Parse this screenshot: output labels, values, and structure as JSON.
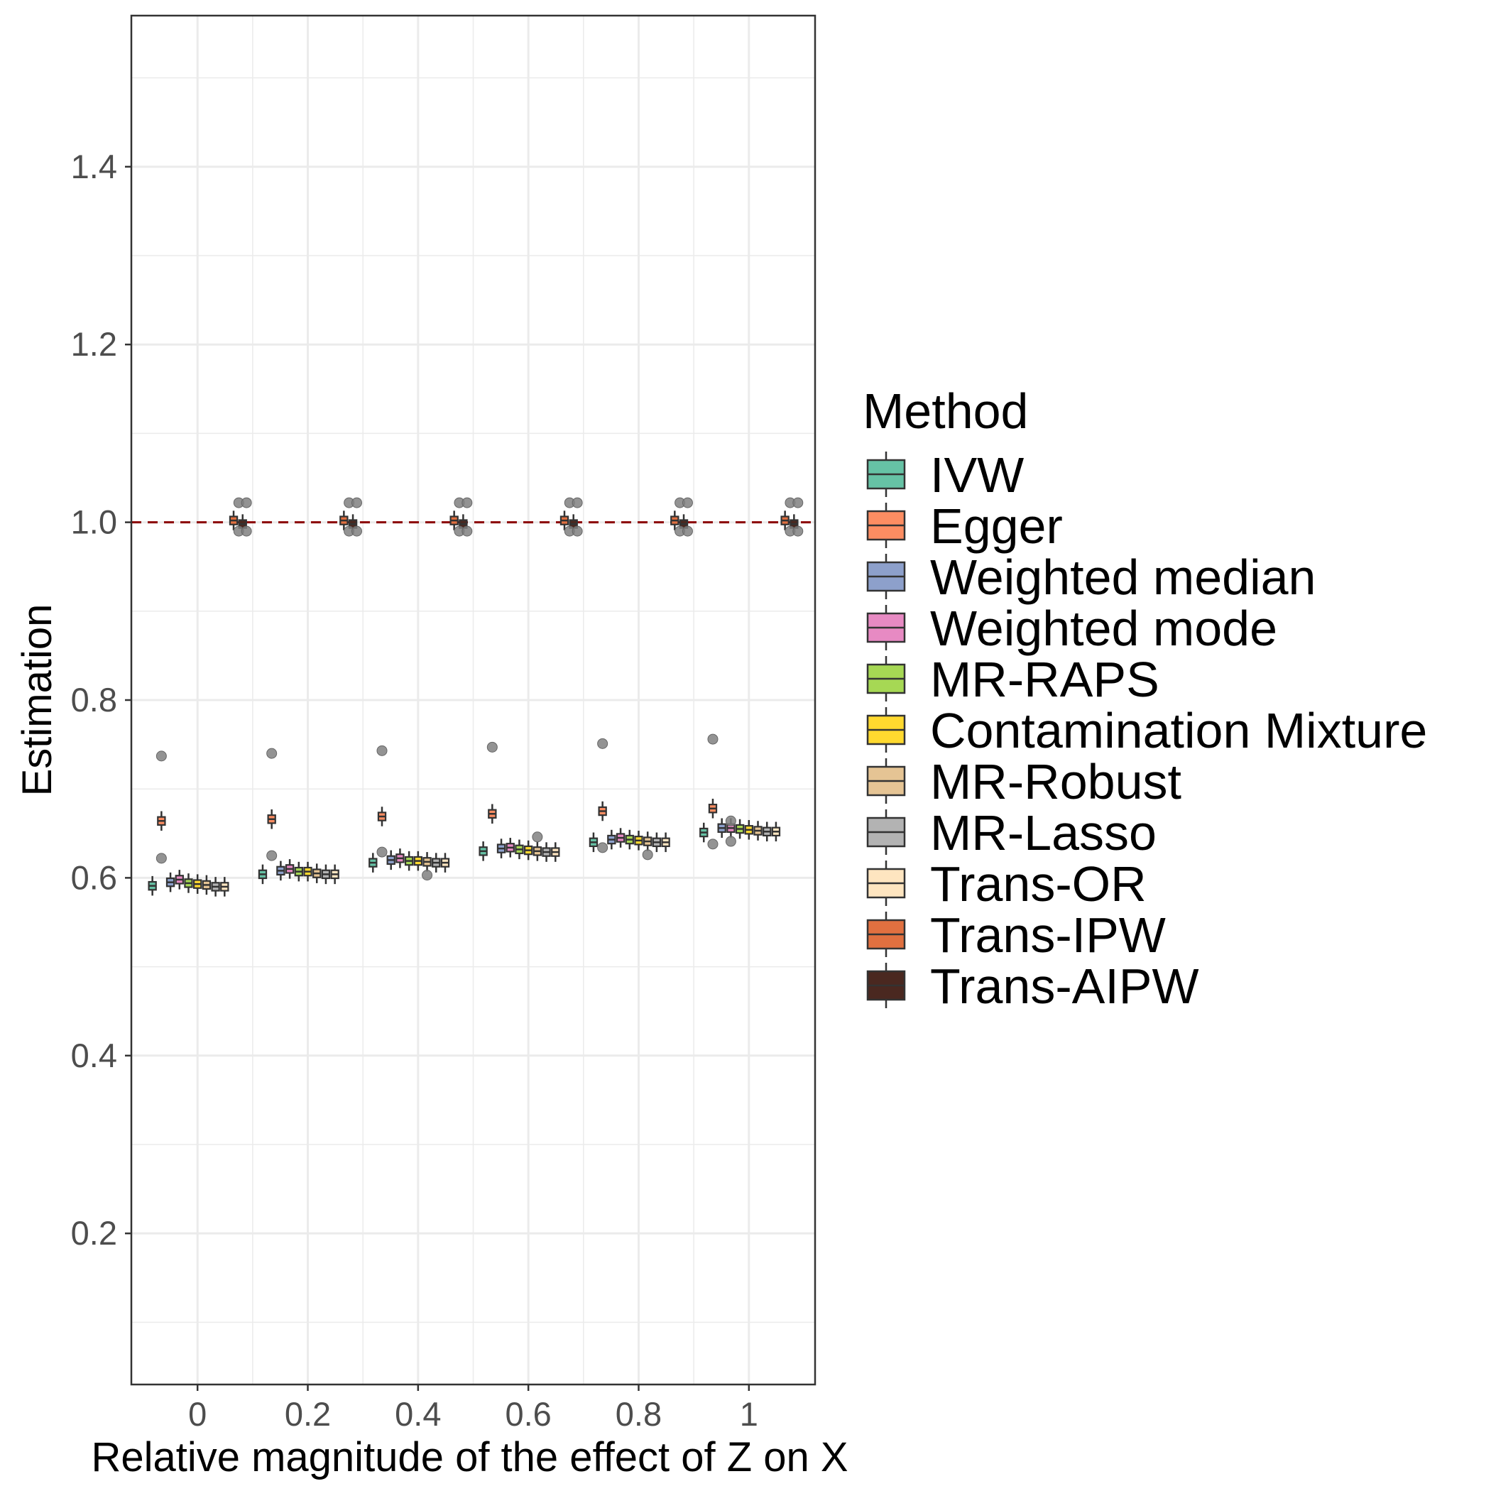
{
  "chart_data": {
    "type": "box",
    "xlabel": "Relative magnitude of the effect of Z on X",
    "ylabel": "Estimation",
    "x_ticks": [
      "0",
      "0.2",
      "0.4",
      "0.6",
      "0.8",
      "1"
    ],
    "y_ticks": [
      "0.2",
      "0.4",
      "0.6",
      "0.8",
      "1.0",
      "1.2",
      "1.4"
    ],
    "ylim": [
      0.03,
      1.57
    ],
    "xlim": [
      -0.12,
      1.12
    ],
    "grid": true,
    "legend_position": "right",
    "reference_line": {
      "y": 1.0,
      "style": "dashed",
      "color": "#8b0000"
    },
    "legend": {
      "title": "Method",
      "items": [
        {
          "label": "IVW",
          "color": "#66c2a5"
        },
        {
          "label": "Egger",
          "color": "#fc8d62"
        },
        {
          "label": "Weighted median",
          "color": "#8da0cb"
        },
        {
          "label": "Weighted mode",
          "color": "#e78ac3"
        },
        {
          "label": "MR-RAPS",
          "color": "#a6d854"
        },
        {
          "label": "Contamination Mixture",
          "color": "#ffd92f"
        },
        {
          "label": "MR-Robust",
          "color": "#e5c494"
        },
        {
          "label": "MR-Lasso",
          "color": "#b3b3b3"
        },
        {
          "label": "Trans-OR",
          "color": "#fee5c0"
        },
        {
          "label": "Trans-IPW",
          "color": "#e07040"
        },
        {
          "label": "Trans-AIPW",
          "color": "#4a2820"
        }
      ]
    },
    "x": [
      0,
      0.2,
      0.4,
      0.6,
      0.8,
      1
    ],
    "series": [
      {
        "name": "IVW",
        "medians": [
          0.591,
          0.604,
          0.617,
          0.63,
          0.64,
          0.651
        ],
        "outliers": [
          [],
          [],
          [],
          [],
          [],
          []
        ]
      },
      {
        "name": "Egger",
        "medians": [
          0.664,
          0.666,
          0.669,
          0.672,
          0.675,
          0.678
        ],
        "outliers": [
          [
            0.737,
            0.622
          ],
          [
            0.74,
            0.625
          ],
          [
            0.743,
            0.629
          ],
          [
            0.747
          ],
          [
            0.751,
            0.634
          ],
          [
            0.756,
            0.638
          ]
        ]
      },
      {
        "name": "Weighted median",
        "medians": [
          0.595,
          0.608,
          0.62,
          0.633,
          0.643,
          0.656
        ],
        "outliers": [
          [],
          [],
          [],
          [],
          [],
          []
        ]
      },
      {
        "name": "Weighted mode",
        "medians": [
          0.598,
          0.61,
          0.622,
          0.634,
          0.645,
          0.656
        ],
        "outliers": [
          [],
          [],
          [],
          [],
          [],
          [
            0.664,
            0.641
          ]
        ]
      },
      {
        "name": "MR-RAPS",
        "medians": [
          0.594,
          0.607,
          0.619,
          0.632,
          0.643,
          0.655
        ],
        "outliers": [
          [],
          [],
          [],
          [],
          [],
          []
        ]
      },
      {
        "name": "Contamination Mixture",
        "medians": [
          0.593,
          0.607,
          0.619,
          0.631,
          0.642,
          0.654
        ],
        "outliers": [
          [],
          [],
          [],
          [],
          [],
          []
        ]
      },
      {
        "name": "MR-Robust",
        "medians": [
          0.592,
          0.605,
          0.618,
          0.63,
          0.641,
          0.653
        ],
        "outliers": [
          [],
          [],
          [
            0.603
          ],
          [
            0.646
          ],
          [
            0.626
          ],
          []
        ]
      },
      {
        "name": "MR-Lasso",
        "medians": [
          0.59,
          0.604,
          0.617,
          0.629,
          0.64,
          0.652
        ],
        "outliers": [
          [],
          [],
          [],
          [],
          [],
          []
        ]
      },
      {
        "name": "Trans-OR",
        "medians": [
          0.59,
          0.604,
          0.617,
          0.629,
          0.64,
          0.652
        ],
        "outliers": [
          [],
          [],
          [],
          [],
          [],
          []
        ]
      },
      {
        "name": "Trans-IPW",
        "medians": [
          1.002,
          1.002,
          1.002,
          1.002,
          1.002,
          1.002
        ],
        "outliers": [
          [],
          [],
          [],
          [],
          [],
          []
        ]
      },
      {
        "name": "Trans-AIPW",
        "medians": [
          0.998,
          0.998,
          0.998,
          0.998,
          0.998,
          0.998
        ],
        "outliers": [
          [
            1.022,
            1.022,
            0.99,
            0.99
          ],
          [
            1.022,
            1.022,
            0.99,
            0.99
          ],
          [
            1.022,
            1.022,
            0.99,
            0.99
          ],
          [
            1.022,
            1.022,
            0.99,
            0.99
          ],
          [
            1.022,
            1.022,
            0.99,
            0.99
          ],
          [
            1.022,
            1.022,
            0.99,
            0.99
          ]
        ]
      }
    ]
  }
}
